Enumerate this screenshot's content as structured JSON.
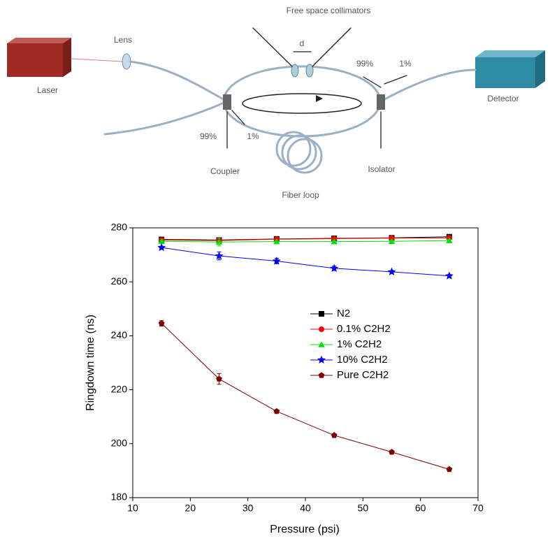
{
  "diagram": {
    "collimators": "Free space collimators",
    "gap": "d",
    "lens": "Lens",
    "laser": "Laser",
    "ratio_out_high": "99%",
    "ratio_out_low": "1%",
    "detector": "Detector",
    "ratio_in_high": "99%",
    "ratio_in_low": "1%",
    "coupler": "Coupler",
    "isolator": "Isolator",
    "fiber_loop": "Fiber loop"
  },
  "chart_data": {
    "type": "line",
    "x_label": "Pressure (psi)",
    "y_label": "Ringdown time (ns)",
    "x": [
      15,
      25,
      35,
      45,
      55,
      65
    ],
    "xlim": [
      10,
      70
    ],
    "xticks": [
      10,
      20,
      30,
      40,
      50,
      60,
      70
    ],
    "ylim": [
      180,
      280
    ],
    "yticks": [
      180,
      200,
      220,
      240,
      260,
      280
    ],
    "legend": "center right",
    "series": [
      {
        "name": "N2",
        "color": "#000000",
        "marker": "square",
        "values": [
          275.7,
          275.5,
          275.9,
          276.1,
          276.3,
          276.7
        ],
        "errors": [
          0.5,
          0.8,
          0.3,
          0.3,
          0.3,
          0.3
        ]
      },
      {
        "name": "0.1% C2H2",
        "color": "#ff0000",
        "marker": "circle",
        "values": [
          275.5,
          275.3,
          275.8,
          276.0,
          276.2,
          276.3
        ],
        "errors": [
          0.4,
          0.6,
          0.3,
          0.3,
          0.3,
          0.3
        ]
      },
      {
        "name": "1% C2H2",
        "color": "#00e000",
        "marker": "triangle",
        "values": [
          275.0,
          274.8,
          274.9,
          274.9,
          275.0,
          275.3
        ],
        "errors": [
          0.4,
          1.5,
          0.4,
          0.4,
          0.4,
          0.4
        ]
      },
      {
        "name": "10% C2H2",
        "color": "#0000ff",
        "marker": "star",
        "values": [
          272.7,
          269.6,
          267.7,
          265.0,
          263.7,
          262.2
        ],
        "errors": [
          0.5,
          1.5,
          1.0,
          0.8,
          0.5,
          0.5
        ]
      },
      {
        "name": "Pure C2H2",
        "color": "#800000",
        "marker": "pentagon",
        "values": [
          244.6,
          224.0,
          212.0,
          203.1,
          196.9,
          190.5
        ],
        "errors": [
          1.0,
          2.0,
          0.5,
          0.5,
          0.5,
          0.5
        ]
      }
    ]
  }
}
